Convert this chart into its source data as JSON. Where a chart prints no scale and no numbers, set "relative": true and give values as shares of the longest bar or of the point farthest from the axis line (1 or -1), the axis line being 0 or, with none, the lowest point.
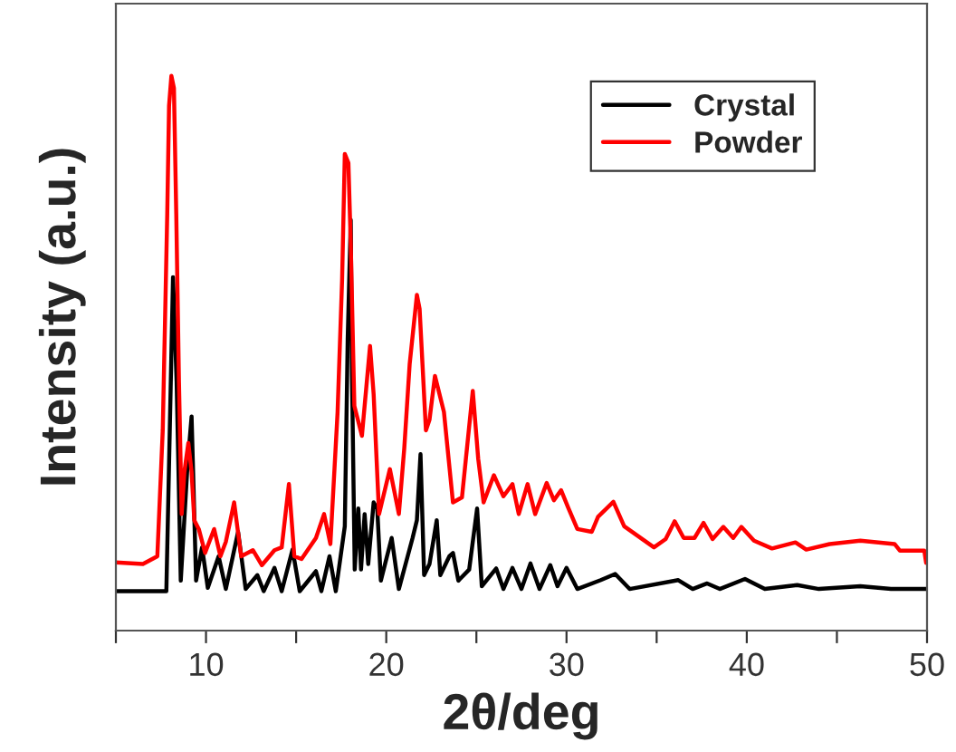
{
  "chart_data": {
    "type": "line",
    "relative": true,
    "xlabel": "2θ/deg",
    "ylabel": "Intensity (a.u.)",
    "xlim": [
      5,
      50
    ],
    "xticks": [
      {
        "value": 5,
        "label": null
      },
      10,
      {
        "value": 15,
        "label": null
      },
      20,
      {
        "value": 25,
        "label": null
      },
      30,
      {
        "value": 35,
        "label": null
      },
      40,
      {
        "value": 45,
        "label": null
      },
      50
    ],
    "tick_labels": "x",
    "grid": false,
    "legend": "top right",
    "marker": "none",
    "line_style": "solid",
    "series": [
      {
        "name": "Crystal",
        "color": "#000000",
        "x": [
          5,
          7.8,
          8.17,
          8.37,
          8.6,
          8.97,
          9.2,
          9.45,
          9.78,
          10.1,
          10.7,
          11.1,
          11.78,
          12.2,
          12.85,
          13.2,
          13.8,
          14.2,
          14.8,
          15.2,
          16.1,
          16.4,
          16.85,
          17.2,
          17.7,
          17.86,
          18.03,
          18.1,
          18.25,
          18.45,
          18.6,
          18.8,
          19.0,
          19.3,
          19.5,
          19.7,
          20.3,
          20.7,
          21.46,
          21.7,
          21.9,
          22.1,
          22.4,
          22.8,
          23.0,
          23.5,
          23.7,
          24.0,
          24.6,
          25.04,
          25.3,
          26.1,
          26.5,
          27.0,
          27.5,
          28.0,
          28.5,
          29.1,
          29.5,
          30.0,
          30.6,
          31.9,
          32.7,
          33.5,
          36.2,
          37.0,
          37.8,
          38.5,
          39.9,
          41.0,
          42.8,
          44.0,
          46.3,
          48.0,
          50
        ],
        "values": [
          0.071,
          0.071,
          0.637,
          0.448,
          0.09,
          0.296,
          0.386,
          0.09,
          0.15,
          0.077,
          0.134,
          0.075,
          0.178,
          0.075,
          0.1,
          0.071,
          0.113,
          0.071,
          0.146,
          0.071,
          0.107,
          0.071,
          0.134,
          0.071,
          0.188,
          0.524,
          0.74,
          0.459,
          0.11,
          0.22,
          0.11,
          0.21,
          0.12,
          0.231,
          0.22,
          0.09,
          0.167,
          0.075,
          0.167,
          0.199,
          0.318,
          0.1,
          0.12,
          0.199,
          0.1,
          0.134,
          0.14,
          0.09,
          0.11,
          0.22,
          0.08,
          0.112,
          0.075,
          0.113,
          0.075,
          0.121,
          0.075,
          0.118,
          0.08,
          0.113,
          0.075,
          0.091,
          0.102,
          0.075,
          0.091,
          0.075,
          0.085,
          0.075,
          0.093,
          0.075,
          0.082,
          0.075,
          0.08,
          0.075,
          0.075
        ]
      },
      {
        "name": "Powder",
        "color": "#ff0000",
        "x": [
          5,
          6.5,
          7.3,
          7.6,
          7.85,
          7.95,
          8.08,
          8.22,
          8.35,
          8.5,
          8.65,
          8.8,
          9.02,
          9.2,
          9.35,
          9.6,
          9.95,
          10.45,
          10.8,
          11.1,
          11.56,
          11.95,
          12.6,
          13.1,
          13.8,
          14.2,
          14.6,
          14.9,
          15.3,
          16.1,
          16.55,
          16.9,
          17.3,
          17.55,
          17.7,
          17.9,
          18.03,
          18.23,
          18.65,
          19.1,
          19.3,
          19.6,
          20.2,
          20.7,
          21.0,
          21.3,
          21.7,
          21.85,
          22.2,
          22.4,
          22.7,
          23.2,
          23.7,
          24.2,
          24.8,
          25.1,
          25.4,
          25.97,
          26.5,
          27.0,
          27.35,
          27.84,
          28.26,
          28.9,
          29.3,
          29.7,
          30.1,
          30.6,
          31.4,
          31.75,
          32.6,
          33.2,
          34.85,
          35.5,
          36.0,
          36.5,
          37.1,
          37.6,
          38.1,
          38.7,
          39.25,
          39.7,
          40.4,
          41.4,
          42.7,
          43.3,
          44.6,
          46.3,
          48.2,
          48.5,
          49.85,
          49.95
        ],
        "values": [
          0.123,
          0.12,
          0.134,
          0.361,
          0.751,
          0.946,
          1,
          0.978,
          0.751,
          0.448,
          0.21,
          0.286,
          0.338,
          0.286,
          0.199,
          0.183,
          0.14,
          0.183,
          0.134,
          0.16,
          0.231,
          0.134,
          0.145,
          0.118,
          0.145,
          0.15,
          0.264,
          0.134,
          0.129,
          0.167,
          0.21,
          0.156,
          0.394,
          0.632,
          0.859,
          0.843,
          0.697,
          0.405,
          0.351,
          0.513,
          0.426,
          0.21,
          0.291,
          0.21,
          0.329,
          0.481,
          0.605,
          0.58,
          0.361,
          0.38,
          0.459,
          0.394,
          0.231,
          0.24,
          0.432,
          0.31,
          0.231,
          0.28,
          0.242,
          0.264,
          0.21,
          0.264,
          0.21,
          0.266,
          0.235,
          0.253,
          0.221,
          0.183,
          0.178,
          0.205,
          0.232,
          0.188,
          0.15,
          0.165,
          0.197,
          0.167,
          0.167,
          0.194,
          0.165,
          0.187,
          0.167,
          0.187,
          0.162,
          0.148,
          0.159,
          0.146,
          0.156,
          0.162,
          0.156,
          0.144,
          0.144,
          0.122
        ]
      }
    ]
  }
}
